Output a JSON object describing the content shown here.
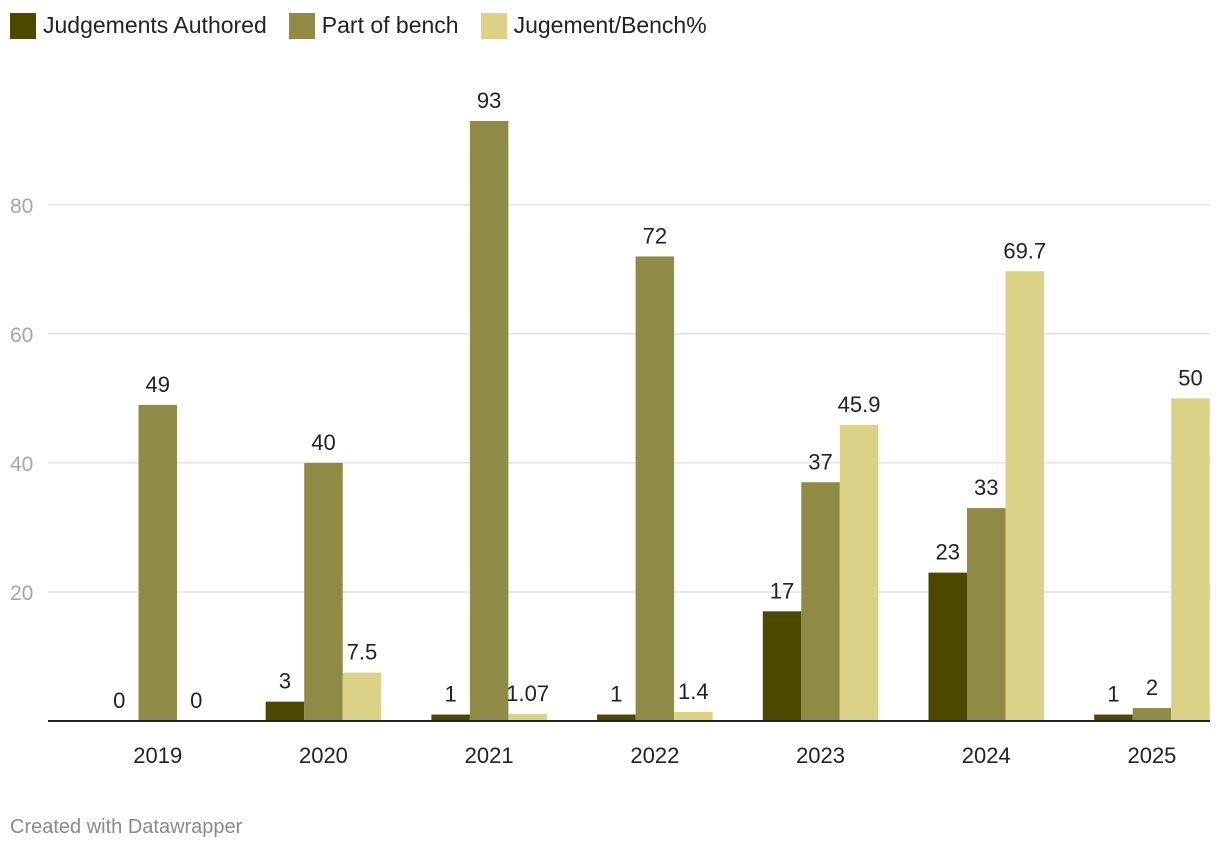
{
  "chart_data": {
    "type": "bar",
    "categories": [
      "2019",
      "2020",
      "2021",
      "2022",
      "2023",
      "2024",
      "2025"
    ],
    "series": [
      {
        "name": "Judgements Authored",
        "color": "#4d4800",
        "values": [
          0,
          3,
          1,
          1,
          17,
          23,
          1
        ],
        "labels": [
          "0",
          "3",
          "1",
          "1",
          "17",
          "23",
          "1"
        ]
      },
      {
        "name": "Part of bench",
        "color": "#8f8a45",
        "values": [
          49,
          40,
          93,
          72,
          37,
          33,
          2
        ],
        "labels": [
          "49",
          "40",
          "93",
          "72",
          "37",
          "33",
          "2"
        ]
      },
      {
        "name": "Jugement/Bench%",
        "color": "#dbd287",
        "values": [
          0,
          7.5,
          1.07,
          1.4,
          45.9,
          69.7,
          50
        ],
        "labels": [
          "0",
          "7.5",
          "1.07",
          "1.4",
          "45.9",
          "69.7",
          "50"
        ]
      }
    ],
    "yticks": [
      {
        "value": 20,
        "label": "20"
      },
      {
        "value": 40,
        "label": "40"
      },
      {
        "value": 60,
        "label": "60"
      },
      {
        "value": 80,
        "label": "80"
      }
    ],
    "ylim": [
      0,
      100
    ],
    "grid": true,
    "legend_position": "top-left"
  },
  "footer": "Created with Datawrapper"
}
